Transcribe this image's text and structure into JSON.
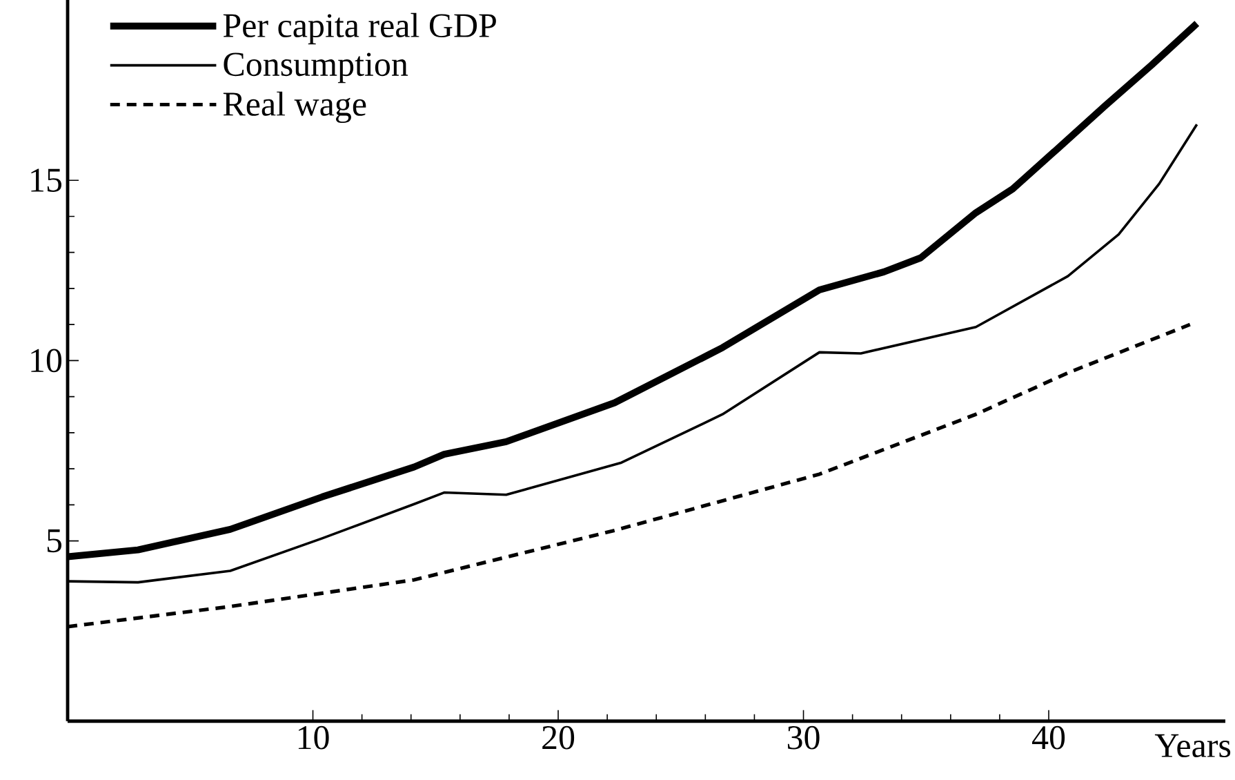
{
  "chart_data": {
    "type": "line",
    "xlabel": "Years",
    "xlim": [
      0,
      47.2
    ],
    "ylim": [
      0,
      20
    ],
    "xticks": [
      10,
      20,
      30,
      40
    ],
    "yticks": [
      5,
      10,
      15
    ],
    "legend": "top left",
    "grid": false,
    "series": [
      {
        "name": "Per capita real GDP",
        "color": "#000000",
        "line_style": "solid",
        "x": [
          0,
          2.87,
          6.63,
          10.38,
          14.13,
          15.35,
          17.88,
          22.3,
          26.7,
          30.65,
          33.28,
          34.78,
          37.03,
          38.53,
          40.4,
          42.29,
          44.2,
          46.04
        ],
        "values": [
          4.56,
          4.75,
          5.32,
          6.22,
          7.05,
          7.4,
          7.75,
          8.83,
          10.36,
          11.96,
          12.46,
          12.85,
          14.1,
          14.76,
          15.9,
          17.06,
          18.2,
          19.35
        ]
      },
      {
        "name": "Consumption",
        "color": "#000000",
        "line_style": "solid",
        "x": [
          0,
          2.87,
          6.63,
          10.38,
          14.13,
          15.35,
          17.88,
          22.58,
          26.7,
          30.65,
          32.34,
          37.03,
          40.78,
          42.85,
          44.5,
          46.04
        ],
        "values": [
          3.88,
          3.85,
          4.17,
          5.07,
          6.02,
          6.34,
          6.28,
          7.17,
          8.51,
          10.23,
          10.2,
          10.93,
          12.34,
          13.5,
          14.9,
          16.55
        ]
      },
      {
        "name": "Real wage",
        "color": "#000000",
        "line_style": "dashed",
        "x": [
          0,
          6.63,
          14.13,
          22.3,
          30.65,
          37.03,
          40.78,
          45.76
        ],
        "values": [
          2.62,
          3.18,
          3.92,
          5.29,
          6.85,
          8.51,
          9.66,
          11.0
        ]
      }
    ]
  }
}
